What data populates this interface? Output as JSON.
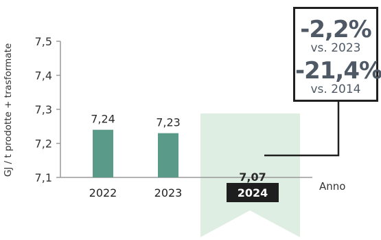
{
  "chart_data": {
    "type": "bar",
    "categories": [
      "2022",
      "2023",
      "2024"
    ],
    "values": [
      7.24,
      7.23,
      7.07
    ],
    "value_labels": [
      "7,24",
      "7,23",
      "7,07"
    ],
    "ylabel": "GJ / t prodotte + trasformate",
    "xlabel": "Anno",
    "ylim": [
      7.1,
      7.5
    ],
    "yticks": [
      7.1,
      7.2,
      7.3,
      7.4,
      7.5
    ],
    "ytick_labels": [
      "7,1",
      "7,2",
      "7,3",
      "7,4",
      "7,5"
    ],
    "highlight_category": "2024",
    "grid": false,
    "colors": {
      "bar": "#5a9a88",
      "highlight_band": "#dfeee3",
      "box_border": "#1f1f1f",
      "text_dark": "#4f5965"
    }
  },
  "callout": {
    "change1_value": "-2,2%",
    "change1_ref": "vs. 2023",
    "change2_value": "-21,4%",
    "change2_ref": "vs. 2014"
  }
}
